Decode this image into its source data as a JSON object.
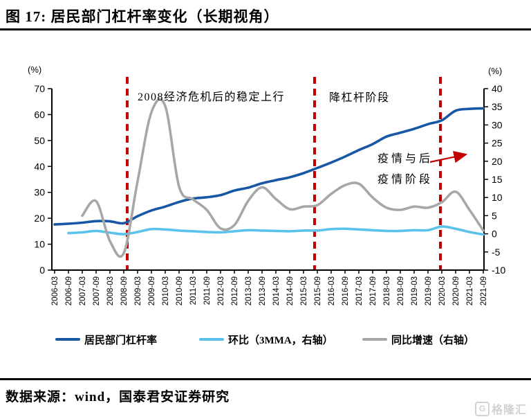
{
  "page": {
    "title": "图 17:  居民部门杠杆率变化（长期视角）",
    "source": "数据来源：wind，国泰君安证券研究",
    "logo_letter": "G",
    "logo_text": "格隆汇"
  },
  "chart_data": {
    "type": "line",
    "title": "居民部门杠杆率变化（长期视角）",
    "legend_position": "bottom",
    "grid": false,
    "left_axis": {
      "label": "(%)",
      "min": 0,
      "max": 70,
      "ticks": [
        70,
        60,
        50,
        40,
        30,
        20,
        10,
        0
      ]
    },
    "right_axis": {
      "label": "(%)",
      "min": -10,
      "max": 40,
      "ticks": [
        40,
        35,
        30,
        25,
        20,
        15,
        10,
        5,
        0,
        -5,
        -10
      ]
    },
    "categories": [
      "2006-03",
      "2006-09",
      "2007-03",
      "2007-09",
      "2008-03",
      "2008-09",
      "2009-03",
      "2009-09",
      "2010-03",
      "2010-09",
      "2011-03",
      "2011-09",
      "2012-03",
      "2012-09",
      "2013-03",
      "2013-09",
      "2014-03",
      "2014-09",
      "2015-03",
      "2015-09",
      "2016-03",
      "2016-09",
      "2017-03",
      "2017-09",
      "2018-03",
      "2018-09",
      "2019-03",
      "2019-09",
      "2020-03",
      "2020-09",
      "2021-03",
      "2021-09"
    ],
    "series": [
      {
        "name": "居民部门杠杆率",
        "axis": "left",
        "color": "#1857A4",
        "values": [
          17.6,
          17.9,
          18.3,
          18.9,
          18.8,
          18.1,
          20.8,
          23.0,
          24.5,
          26.3,
          27.6,
          28.1,
          28.9,
          30.7,
          31.8,
          33.5,
          34.7,
          35.8,
          37.4,
          39.4,
          41.5,
          43.8,
          46.3,
          48.6,
          51.5,
          53.0,
          54.5,
          56.3,
          57.8,
          61.5,
          62.2,
          62.4
        ]
      },
      {
        "name": "环比（3MMA，右轴）",
        "axis": "right",
        "color": "#5BC2EC",
        "values": [
          null,
          0.2,
          0.4,
          0.8,
          0.3,
          -0.1,
          0.5,
          1.3,
          1.2,
          0.9,
          0.7,
          0.5,
          0.4,
          0.7,
          1.0,
          0.9,
          0.8,
          0.7,
          0.9,
          0.9,
          1.3,
          1.4,
          1.2,
          1.0,
          0.8,
          0.8,
          1.0,
          1.0,
          2.0,
          1.4,
          0.5,
          -0.2
        ]
      },
      {
        "name": "同比增速（右轴）",
        "axis": "right",
        "color": "#A7A7A7",
        "values": [
          null,
          null,
          5.0,
          9.0,
          -2.0,
          -5.3,
          14.5,
          33.5,
          35.2,
          13.0,
          9.5,
          6.6,
          1.5,
          2.4,
          9.1,
          12.8,
          9.6,
          6.8,
          7.5,
          7.9,
          11.0,
          13.4,
          13.8,
          10.0,
          7.2,
          6.6,
          7.5,
          7.2,
          8.7,
          11.6,
          6.6,
          0.9
        ]
      }
    ],
    "phase_lines": {
      "color": "#C00000",
      "items": [
        {
          "label": "2008-09",
          "index": 5.25
        },
        {
          "label": "2015-09",
          "index": 18.8
        },
        {
          "label": "2020-03",
          "index": 27.9
        }
      ]
    },
    "annotations": [
      {
        "text": "2008经济危机后的稳定上行"
      },
      {
        "text": "降杠杆阶段"
      },
      {
        "text_line1": "疫情与后",
        "text_line2": "疫情阶段"
      }
    ]
  }
}
